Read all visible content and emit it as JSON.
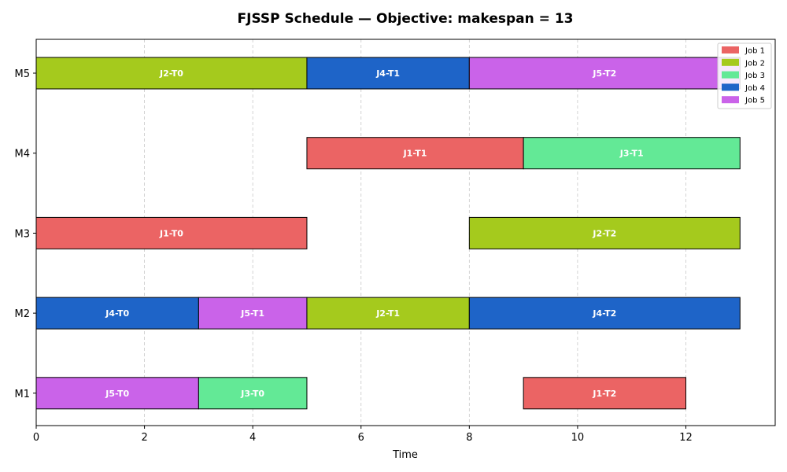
{
  "chart_data": {
    "type": "gantt",
    "title": "FJSSP Schedule — Objective: makespan = 13",
    "xlabel": "Time",
    "ylabel": "",
    "xlim": [
      0,
      13.65
    ],
    "x_ticks": [
      0,
      2,
      4,
      6,
      8,
      10,
      12
    ],
    "machines": [
      "M1",
      "M2",
      "M3",
      "M4",
      "M5"
    ],
    "grid": "vertical-dashed",
    "legend_position": "top-right",
    "series": [
      {
        "name": "Job 1",
        "color": "#eb6464"
      },
      {
        "name": "Job 2",
        "color": "#a5ca1d"
      },
      {
        "name": "Job 3",
        "color": "#63e996"
      },
      {
        "name": "Job 4",
        "color": "#1e64c8"
      },
      {
        "name": "Job 5",
        "color": "#ca63e9"
      }
    ],
    "tasks": [
      {
        "machine": "M1",
        "job": "Job 5",
        "label": "J5-T0",
        "start": 0,
        "end": 3
      },
      {
        "machine": "M1",
        "job": "Job 3",
        "label": "J3-T0",
        "start": 3,
        "end": 5
      },
      {
        "machine": "M1",
        "job": "Job 1",
        "label": "J1-T2",
        "start": 9,
        "end": 12
      },
      {
        "machine": "M2",
        "job": "Job 4",
        "label": "J4-T0",
        "start": 0,
        "end": 3
      },
      {
        "machine": "M2",
        "job": "Job 5",
        "label": "J5-T1",
        "start": 3,
        "end": 5
      },
      {
        "machine": "M2",
        "job": "Job 2",
        "label": "J2-T1",
        "start": 5,
        "end": 8
      },
      {
        "machine": "M2",
        "job": "Job 4",
        "label": "J4-T2",
        "start": 8,
        "end": 13
      },
      {
        "machine": "M3",
        "job": "Job 1",
        "label": "J1-T0",
        "start": 0,
        "end": 5
      },
      {
        "machine": "M3",
        "job": "Job 2",
        "label": "J2-T2",
        "start": 8,
        "end": 13
      },
      {
        "machine": "M4",
        "job": "Job 1",
        "label": "J1-T1",
        "start": 5,
        "end": 9
      },
      {
        "machine": "M4",
        "job": "Job 3",
        "label": "J3-T1",
        "start": 9,
        "end": 13
      },
      {
        "machine": "M5",
        "job": "Job 2",
        "label": "J2-T0",
        "start": 0,
        "end": 5
      },
      {
        "machine": "M5",
        "job": "Job 4",
        "label": "J4-T1",
        "start": 5,
        "end": 8
      },
      {
        "machine": "M5",
        "job": "Job 5",
        "label": "J5-T2",
        "start": 8,
        "end": 13
      }
    ]
  }
}
